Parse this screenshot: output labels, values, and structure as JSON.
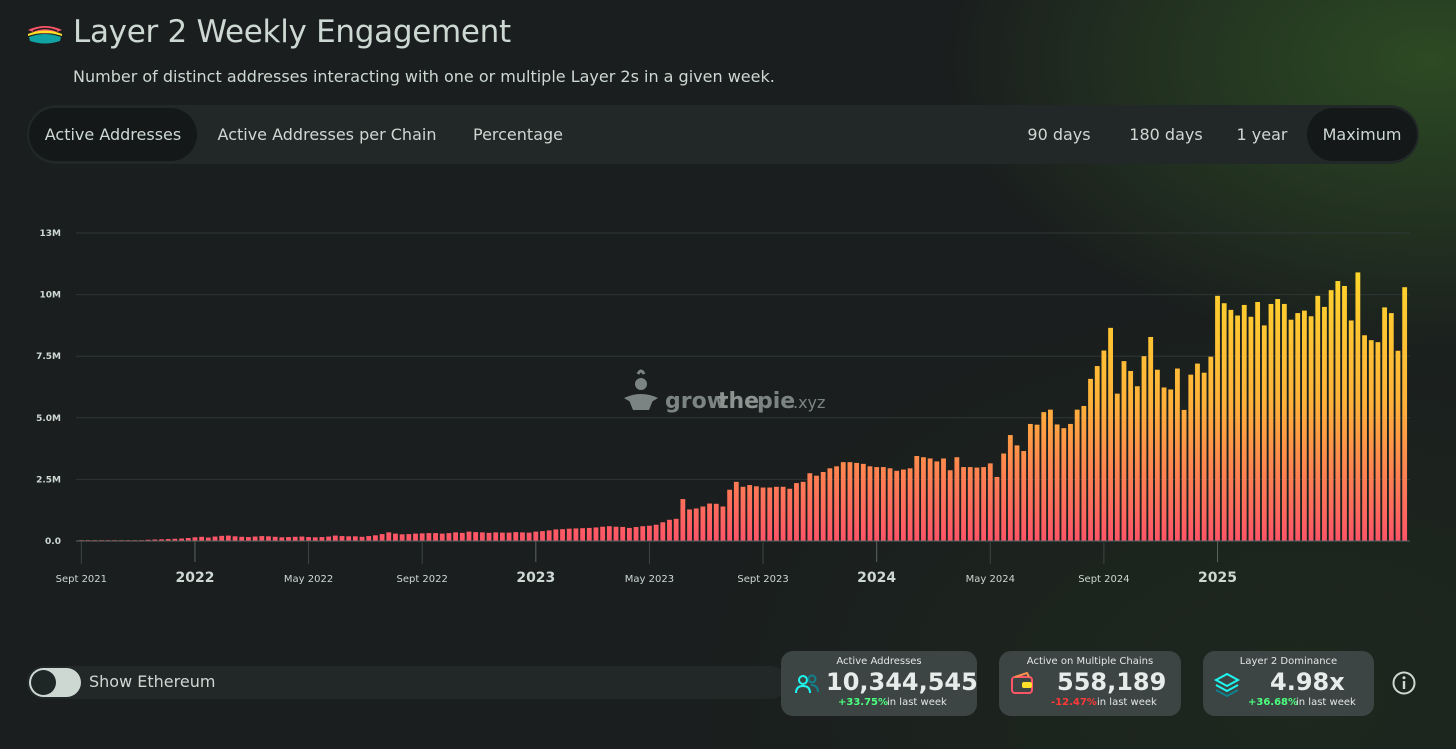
{
  "header": {
    "title": "Layer 2 Weekly Engagement",
    "subtitle": "Number of distinct addresses interacting with one or multiple Layer 2s in a given week."
  },
  "tabs": {
    "left": [
      "Active Addresses",
      "Active Addresses per Chain",
      "Percentage"
    ],
    "right": [
      "90 days",
      "180 days",
      "1 year",
      "Maximum"
    ],
    "active_left": "Active Addresses",
    "active_right": "Maximum"
  },
  "watermark": {
    "text_grow": "grow",
    "text_the": "the",
    "text_pie": "pie",
    "text_xyz": ".xyz"
  },
  "toggle": {
    "label": "Show Ethereum",
    "state": "off"
  },
  "metrics": [
    {
      "title": "Active Addresses",
      "value": "10,344,545",
      "change": "+33.75%",
      "change_color": "#4CFF7E",
      "suffix": "in last week",
      "icon": "users-icon"
    },
    {
      "title": "Active on Multiple Chains",
      "value": "558,189",
      "change": "-12.47%",
      "change_color": "#FF3838",
      "suffix": "in last week",
      "icon": "multichain-wallet-icon"
    },
    {
      "title": "Layer 2 Dominance",
      "value": "4.98x",
      "change": "+36.68%",
      "change_color": "#4CFF7E",
      "suffix": "in last week",
      "icon": "layers-icon"
    }
  ],
  "colors": {
    "bar_top": "#FFDF27",
    "bar_bottom": "#FE5468",
    "background": "#1A1E1E",
    "panel": "#222827",
    "text": "#CDD8D3",
    "positive": "#4CFF7E",
    "negative": "#FF3838"
  },
  "chart_data": {
    "type": "bar",
    "y_ticks": [
      "0.0",
      "2.5M",
      "5.0M",
      "7.5M",
      "10M",
      "13M"
    ],
    "y_tick_values": [
      0,
      2.5,
      5.0,
      7.5,
      10,
      12.5
    ],
    "y_unit": "millions of addresses",
    "ylim": [
      0,
      12.5
    ],
    "x_tick_labels": [
      {
        "label": "Sept 2021",
        "index": 0,
        "major": false
      },
      {
        "label": "2022",
        "index": 17,
        "major": true
      },
      {
        "label": "May 2022",
        "index": 34,
        "major": false
      },
      {
        "label": "Sept 2022",
        "index": 51,
        "major": false
      },
      {
        "label": "2023",
        "index": 68,
        "major": true
      },
      {
        "label": "May 2023",
        "index": 85,
        "major": false
      },
      {
        "label": "Sept 2023",
        "index": 102,
        "major": false
      },
      {
        "label": "2024",
        "index": 119,
        "major": true
      },
      {
        "label": "May 2024",
        "index": 136,
        "major": false
      },
      {
        "label": "Sept 2024",
        "index": 153,
        "major": false
      },
      {
        "label": "2025",
        "index": 170,
        "major": true
      }
    ],
    "values": [
      0.01,
      0.01,
      0.01,
      0.01,
      0.01,
      0.01,
      0.01,
      0.01,
      0.01,
      0.01,
      0.05,
      0.06,
      0.07,
      0.08,
      0.09,
      0.1,
      0.12,
      0.15,
      0.17,
      0.14,
      0.18,
      0.21,
      0.22,
      0.19,
      0.17,
      0.16,
      0.18,
      0.2,
      0.19,
      0.17,
      0.15,
      0.16,
      0.17,
      0.18,
      0.16,
      0.15,
      0.16,
      0.18,
      0.22,
      0.2,
      0.19,
      0.19,
      0.17,
      0.2,
      0.23,
      0.28,
      0.35,
      0.3,
      0.27,
      0.28,
      0.3,
      0.31,
      0.32,
      0.32,
      0.3,
      0.32,
      0.35,
      0.33,
      0.38,
      0.36,
      0.35,
      0.33,
      0.35,
      0.34,
      0.34,
      0.36,
      0.35,
      0.34,
      0.38,
      0.4,
      0.43,
      0.47,
      0.48,
      0.5,
      0.51,
      0.52,
      0.53,
      0.55,
      0.58,
      0.6,
      0.58,
      0.57,
      0.53,
      0.57,
      0.6,
      0.62,
      0.66,
      0.76,
      0.86,
      0.9,
      1.7,
      1.28,
      1.32,
      1.4,
      1.52,
      1.51,
      1.4,
      2.08,
      2.4,
      2.2,
      2.27,
      2.22,
      2.17,
      2.17,
      2.2,
      2.2,
      2.12,
      2.35,
      2.4,
      2.75,
      2.65,
      2.8,
      2.95,
      3.03,
      3.2,
      3.2,
      3.17,
      3.13,
      3.03,
      3.0,
      3.0,
      2.95,
      2.85,
      2.9,
      2.95,
      3.45,
      3.4,
      3.35,
      3.23,
      3.35,
      2.87,
      3.4,
      3.0,
      3.0,
      2.98,
      3.0,
      3.15,
      2.6,
      3.55,
      4.3,
      3.88,
      3.65,
      4.75,
      4.72,
      5.23,
      5.33,
      4.73,
      4.58,
      4.75,
      5.33,
      5.48,
      6.58,
      7.1,
      7.73,
      8.65,
      5.98,
      7.3,
      6.9,
      6.28,
      7.5,
      8.28,
      6.95,
      6.23,
      6.15,
      7.0,
      5.32,
      6.75,
      7.2,
      6.83,
      7.48,
      9.95,
      9.65,
      9.38,
      9.15,
      9.58,
      9.1,
      9.7,
      8.75,
      9.62,
      9.82,
      9.62,
      8.98,
      9.25,
      9.35,
      9.12,
      9.95,
      9.5,
      10.18,
      10.55,
      10.35,
      8.95,
      10.9,
      8.35,
      8.15,
      8.07,
      9.48,
      9.25,
      7.72,
      10.3
    ]
  }
}
